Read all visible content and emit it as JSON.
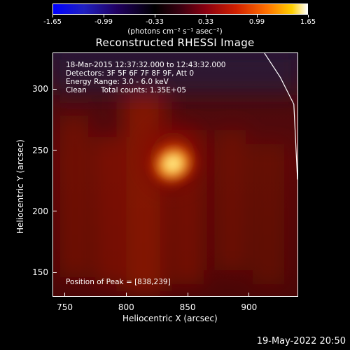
{
  "colorbar": {
    "ticks": [
      "-1.65",
      "-0.99",
      "-0.33",
      "0.33",
      "0.99",
      "1.65"
    ],
    "units_label": "(photons cm⁻² s⁻¹ asec⁻²)"
  },
  "chart_data": {
    "type": "heatmap",
    "title": "Reconstructed RHESSI Image",
    "xlabel": "Heliocentric X (arcsec)",
    "ylabel": "Heliocentric Y (arcsec)",
    "xticks": [
      "750",
      "800",
      "850",
      "900"
    ],
    "yticks": [
      "150",
      "200",
      "250",
      "300"
    ],
    "xlim": [
      740,
      940
    ],
    "ylim": [
      130,
      330
    ],
    "colormap": "hot",
    "value_range": [
      -1.65,
      1.65
    ],
    "peak": {
      "x": 838,
      "y": 239
    },
    "limb_line": [
      {
        "x": 913,
        "y": 330
      },
      {
        "x": 926,
        "y": 310
      },
      {
        "x": 937,
        "y": 288
      },
      {
        "x": 940,
        "y": 226
      }
    ]
  },
  "info": {
    "time_range": "18-Mar-2015 12:37:32.000 to 12:43:32.000",
    "detectors": "Detectors: 3F 5F 6F 7F 8F 9F, Att 0",
    "energy": "Energy Range: 3.0 - 6.0 keV",
    "method": "Clean",
    "counts": "Total counts: 1.35E+05",
    "peak_text": "Position of Peak = [838,239]"
  },
  "footer": {
    "date": "19-May-2022 20:50"
  }
}
